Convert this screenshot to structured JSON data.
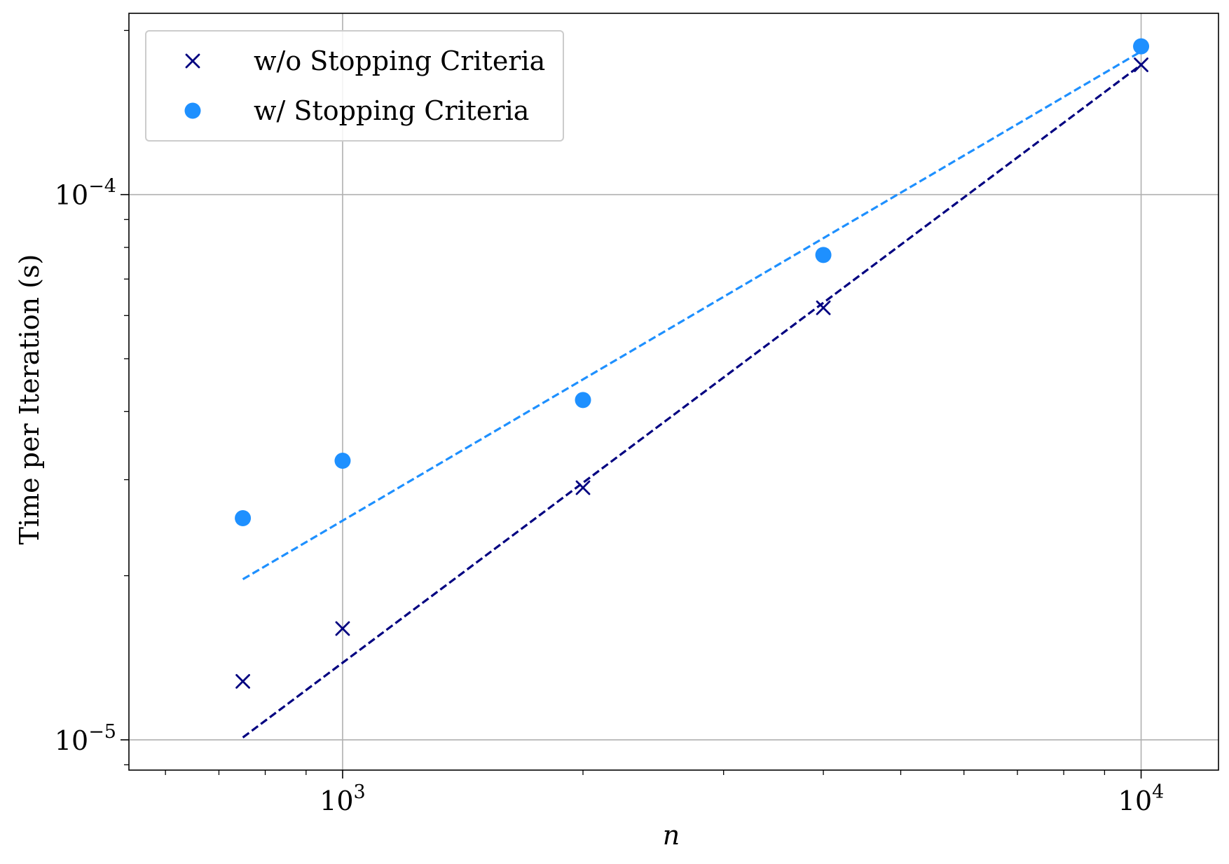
{
  "chart_data": {
    "type": "scatter",
    "title": "",
    "xlabel": "n",
    "ylabel": "Time per Iteration (s)",
    "xscale": "log",
    "yscale": "log",
    "xlim": [
      540,
      12500
    ],
    "ylim": [
      8.8e-06,
      0.000215
    ],
    "xticks": [
      {
        "value": 1000,
        "base": "10",
        "exp": "3"
      },
      {
        "value": 10000,
        "base": "10",
        "exp": "4"
      }
    ],
    "yticks": [
      {
        "value": 1e-05,
        "base": "10",
        "exp": "−5"
      },
      {
        "value": 0.0001,
        "base": "10",
        "exp": "−4"
      }
    ],
    "grid": true,
    "legend_position": "top-left",
    "series": [
      {
        "name": "w/o Stopping Criteria",
        "marker": "x",
        "color": "#000080",
        "x": [
          750,
          1000,
          2000,
          4000,
          10000
        ],
        "y": [
          1.28e-05,
          1.6e-05,
          2.9e-05,
          6.2e-05,
          0.000173
        ],
        "fit": {
          "x": [
            750,
            10000
          ],
          "y": [
            1.01e-05,
            0.000173
          ]
        }
      },
      {
        "name": "w/ Stopping Criteria",
        "marker": "circle",
        "color": "#1e90ff",
        "x": [
          750,
          1000,
          2000,
          4000,
          10000
        ],
        "y": [
          2.55e-05,
          3.25e-05,
          4.2e-05,
          7.75e-05,
          0.000187
        ],
        "fit": {
          "x": [
            750,
            10000
          ],
          "y": [
            1.97e-05,
            0.000183
          ]
        }
      }
    ]
  }
}
